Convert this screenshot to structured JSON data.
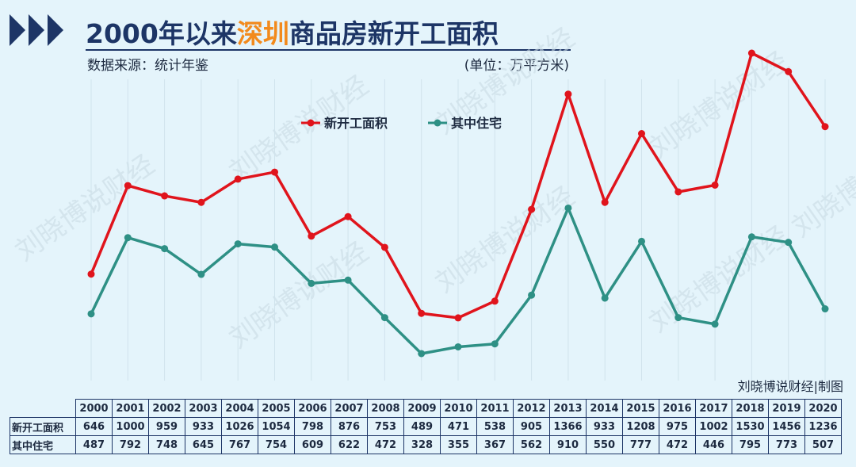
{
  "header": {
    "title_pre": "2000年以来",
    "title_highlight": "深圳",
    "title_post": "商品房新开工面积",
    "source": "数据来源：统计年鉴",
    "unit": "(单位：万平方米)",
    "credit": "刘晓博说财经|制图",
    "watermark": "刘晓博说财经"
  },
  "colors": {
    "primary": "#e0141c",
    "secondary": "#2e9085",
    "title": "#1d3566",
    "highlight": "#f28a1c"
  },
  "chart_data": {
    "type": "line",
    "title": "2000年以来深圳商品房新开工面积",
    "ylabel": "万平方米",
    "categories": [
      "2000",
      "2001",
      "2002",
      "2003",
      "2004",
      "2005",
      "2006",
      "2007",
      "2008",
      "2009",
      "2010",
      "2011",
      "2012",
      "2013",
      "2014",
      "2015",
      "2016",
      "2017",
      "2018",
      "2019",
      "2020"
    ],
    "series": [
      {
        "name": "新开工面积",
        "values": [
          646,
          1000,
          959,
          933,
          1026,
          1054,
          798,
          876,
          753,
          489,
          471,
          538,
          905,
          1366,
          933,
          1208,
          975,
          1002,
          1530,
          1456,
          1236
        ]
      },
      {
        "name": "其中住宅",
        "values": [
          487,
          792,
          748,
          645,
          767,
          754,
          609,
          622,
          472,
          328,
          355,
          367,
          562,
          910,
          550,
          777,
          472,
          446,
          795,
          773,
          507
        ]
      }
    ],
    "legend": "top-center",
    "grid": "vertical"
  }
}
